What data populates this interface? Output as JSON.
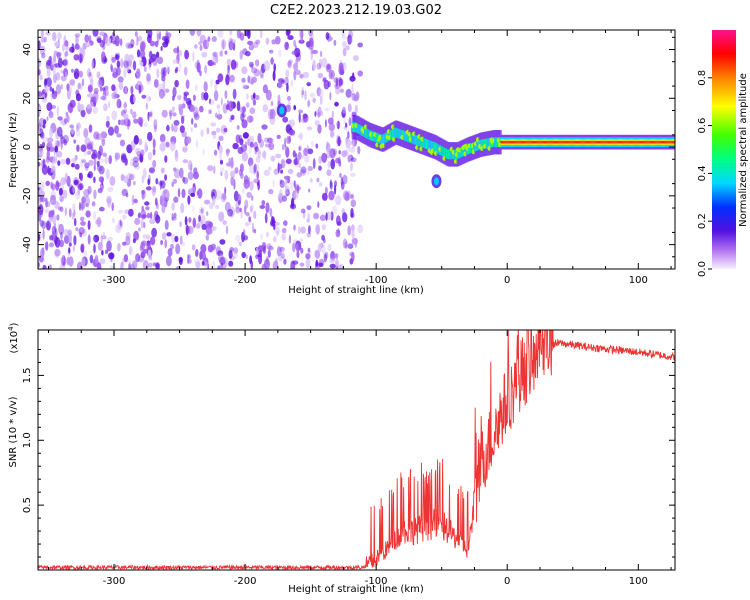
{
  "title": "C2E2.2023.212.19.03.G02",
  "chart_data": [
    {
      "type": "heatmap",
      "panel": "top",
      "xlabel": "Height of straight line (km)",
      "ylabel": "Frequency (Hz)",
      "xlim": [
        -358,
        128
      ],
      "ylim": [
        -50,
        48
      ],
      "xticks": [
        -300,
        -200,
        -100,
        0,
        100
      ],
      "xtick_labels": [
        "-300",
        "-200",
        "-100",
        "0",
        "100"
      ],
      "yticks": [
        -40,
        -20,
        0,
        20,
        40
      ],
      "ytick_labels": [
        "-40",
        "-20",
        "0",
        "20",
        "40"
      ],
      "noise_region_x": [
        -358,
        -112
      ],
      "trace": {
        "x": [
          -128,
          -115,
          -105,
          -95,
          -85,
          -75,
          -65,
          -55,
          -45,
          -38,
          -30,
          -20,
          -10,
          0,
          10,
          30,
          60,
          85,
          95,
          110,
          128
        ],
        "y": [
          9,
          8,
          5,
          3,
          6,
          4,
          2,
          0,
          -3,
          -3,
          -1,
          1,
          2,
          2,
          2,
          2,
          2,
          2,
          2,
          2,
          2
        ]
      },
      "features": [
        {
          "x": -172,
          "y": 15
        },
        {
          "x": -54,
          "y": -14
        }
      ]
    },
    {
      "type": "colorbar",
      "label": "Normalized spectral amplitude",
      "range": [
        0,
        1
      ],
      "ticks": [
        0,
        0.2,
        0.4,
        0.6,
        0.8
      ],
      "tick_labels": [
        "0.0",
        "0.2",
        "0.4",
        "0.6",
        "0.8"
      ]
    },
    {
      "type": "line",
      "panel": "bottom",
      "xlabel": "Height of straight line (km)",
      "ylabel": "SNR (10 * v/v)",
      "y_scale_label": "(x10",
      "y_scale_exp": "4",
      "y_scale_close": ")",
      "xlim": [
        -358,
        128
      ],
      "ylim": [
        0,
        1.85
      ],
      "xticks": [
        -300,
        -200,
        -100,
        0,
        100
      ],
      "xtick_labels": [
        "-300",
        "-200",
        "-100",
        "0",
        "100"
      ],
      "yticks": [
        0.5,
        1.0,
        1.5
      ],
      "ytick_labels": [
        "0.5",
        "1.0",
        "1.5"
      ],
      "color": "#ee3333",
      "envelope": {
        "x": [
          -358,
          -110,
          -100,
          -90,
          -80,
          -70,
          -60,
          -50,
          -40,
          -30,
          -25,
          -20,
          -15,
          -10,
          -5,
          0,
          10,
          20,
          30,
          40,
          60,
          80,
          100,
          128
        ],
        "y": [
          0.02,
          0.02,
          0.08,
          0.18,
          0.3,
          0.3,
          0.35,
          0.35,
          0.25,
          0.15,
          0.5,
          0.8,
          0.95,
          1.05,
          1.2,
          1.3,
          1.5,
          1.6,
          1.72,
          1.75,
          1.72,
          1.7,
          1.68,
          1.64
        ]
      }
    }
  ]
}
